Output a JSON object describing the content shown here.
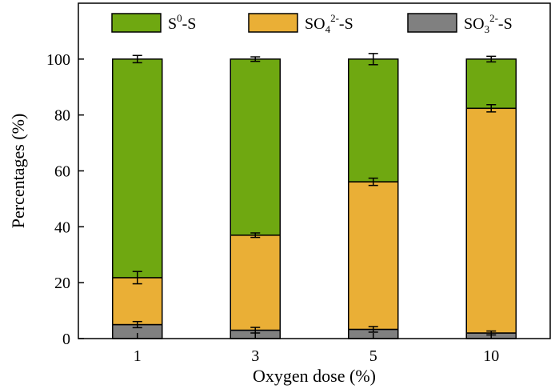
{
  "chart_data": {
    "type": "bar",
    "stacked": true,
    "title": "",
    "xlabel": "Oxygen dose (%)",
    "ylabel": "Percentages (%)",
    "ylim": [
      0,
      120
    ],
    "yticks": [
      0,
      20,
      40,
      60,
      80,
      100
    ],
    "categories": [
      "1",
      "3",
      "5",
      "10"
    ],
    "series": [
      {
        "key": "so3",
        "name": "SO3²⁻-S",
        "legend_main": "SO",
        "legend_sub": "3",
        "legend_sup": "2-",
        "legend_tail": "-S",
        "color": "#808080",
        "values": [
          5.0,
          3.0,
          3.3,
          2.0
        ],
        "errors": [
          1.1,
          1.0,
          1.0,
          0.7
        ]
      },
      {
        "key": "so4",
        "name": "SO4²⁻-S",
        "legend_main": "SO",
        "legend_sub": "4",
        "legend_sup": "2-",
        "legend_tail": "-S",
        "color": "#EAAF36",
        "values": [
          16.8,
          34.0,
          52.8,
          80.4
        ],
        "errors": [
          2.2,
          0.8,
          1.3,
          1.3
        ]
      },
      {
        "key": "s0",
        "name": "S⁰-S",
        "legend_main": "S",
        "legend_sub": "",
        "legend_sup": "0",
        "legend_tail": "-S",
        "color": "#6FA811",
        "values": [
          78.2,
          63.0,
          43.9,
          17.6
        ],
        "errors": [
          1.3,
          0.8,
          2.0,
          1.0
        ]
      }
    ],
    "legend_position": "top"
  }
}
